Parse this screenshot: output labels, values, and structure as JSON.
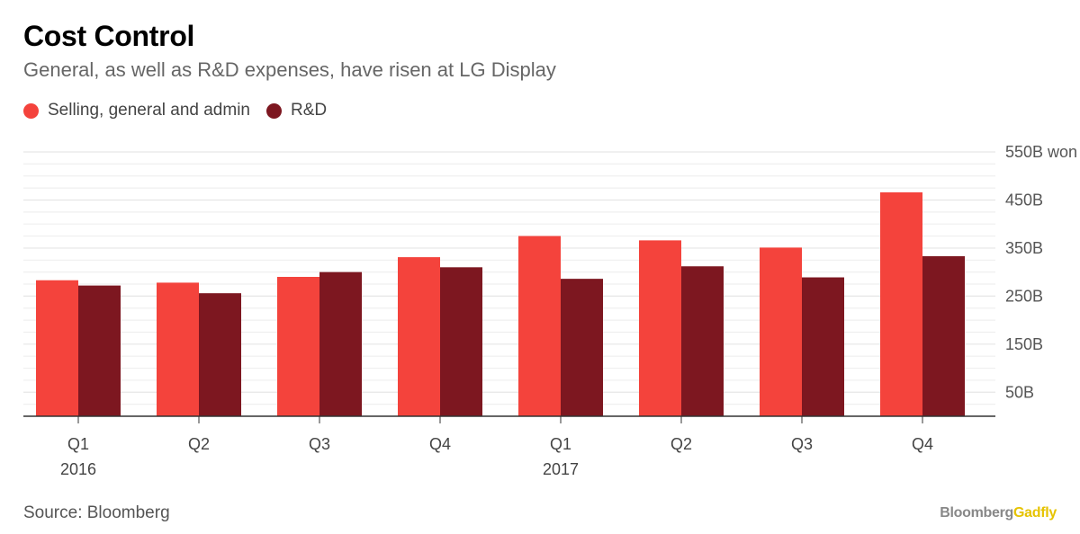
{
  "header": {
    "title": "Cost Control",
    "subtitle": "General, as well as R&D expenses, have risen at LG Display"
  },
  "footer": {
    "source": "Source: Bloomberg",
    "brand_main": "Bloomberg",
    "brand_accent": "Gadfly"
  },
  "chart_data": {
    "type": "bar",
    "categories": [
      "Q1",
      "Q2",
      "Q3",
      "Q4",
      "Q1",
      "Q2",
      "Q3",
      "Q4"
    ],
    "year_labels": [
      "2016",
      "",
      "",
      "",
      "2017",
      "",
      "",
      ""
    ],
    "series": [
      {
        "name": "Selling, general and admin",
        "color": "#f4433c",
        "values": [
          283,
          278,
          290,
          331,
          375,
          366,
          351,
          466
        ]
      },
      {
        "name": "R&D",
        "color": "#7d1720",
        "values": [
          272,
          256,
          300,
          310,
          286,
          312,
          289,
          333
        ]
      }
    ],
    "ylim": [
      0,
      550
    ],
    "yticks": [
      50,
      150,
      250,
      350,
      450,
      550
    ],
    "ytick_labels": [
      "50B",
      "150B",
      "250B",
      "350B",
      "450B",
      "550B won"
    ],
    "grid": true,
    "legend_position": "top-left",
    "xlabel": "",
    "ylabel": ""
  }
}
